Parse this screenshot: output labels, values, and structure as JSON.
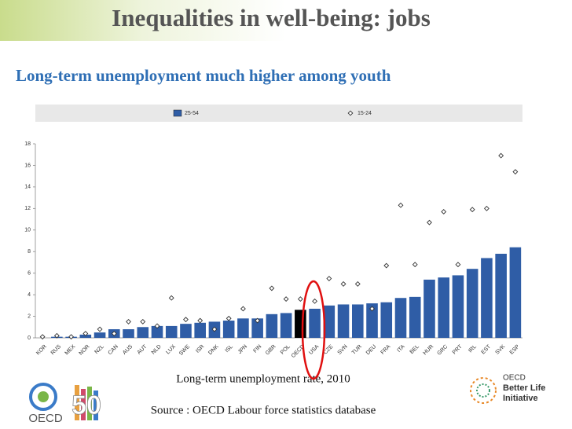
{
  "header": {
    "title": "Inequalities in well-being: jobs",
    "subtitle": "Long-term unemployment much higher among youth"
  },
  "chart_data": {
    "type": "bar",
    "categories": [
      "KOR",
      "RUS",
      "MEX",
      "NOR",
      "NZL",
      "CAN",
      "AUS",
      "AUT",
      "NLD",
      "LUX",
      "SWE",
      "ISR",
      "DNK",
      "ISL",
      "JPN",
      "FIN",
      "GBR",
      "POL",
      "OECD",
      "USA",
      "CZE",
      "SVN",
      "TUR",
      "DEU",
      "FRA",
      "ITA",
      "BEL",
      "HUR",
      "GRC",
      "PRT",
      "IRL",
      "EST",
      "SVK",
      "ESP"
    ],
    "series": [
      {
        "name": "25-54",
        "mark": "bar",
        "color": "#2f5da6",
        "values": [
          0.0,
          0.1,
          0.1,
          0.3,
          0.5,
          0.8,
          0.8,
          1.0,
          1.1,
          1.1,
          1.3,
          1.4,
          1.5,
          1.6,
          1.8,
          1.8,
          2.2,
          2.3,
          2.6,
          2.7,
          3.0,
          3.1,
          3.1,
          3.2,
          3.3,
          3.7,
          3.8,
          5.4,
          5.6,
          5.8,
          6.4,
          7.4,
          7.8,
          8.4
        ],
        "colors": [
          "#2f5da6",
          "#2f5da6",
          "#2f5da6",
          "#2f5da6",
          "#2f5da6",
          "#2f5da6",
          "#2f5da6",
          "#2f5da6",
          "#2f5da6",
          "#2f5da6",
          "#2f5da6",
          "#2f5da6",
          "#2f5da6",
          "#2f5da6",
          "#2f5da6",
          "#2f5da6",
          "#2f5da6",
          "#2f5da6",
          "#000000",
          "#2f5da6",
          "#2f5da6",
          "#2f5da6",
          "#2f5da6",
          "#2f5da6",
          "#2f5da6",
          "#2f5da6",
          "#2f5da6",
          "#2f5da6",
          "#2f5da6",
          "#2f5da6",
          "#2f5da6",
          "#2f5da6",
          "#2f5da6",
          "#2f5da6"
        ]
      },
      {
        "name": "15-24",
        "mark": "diamond",
        "color": "#333333",
        "values": [
          0.1,
          0.2,
          0.1,
          0.4,
          0.8,
          0.4,
          1.5,
          1.5,
          1.1,
          3.7,
          1.7,
          1.6,
          0.8,
          1.8,
          2.7,
          1.6,
          4.6,
          3.6,
          3.6,
          3.4,
          5.5,
          5.0,
          5.0,
          2.7,
          6.7,
          12.3,
          6.8,
          10.7,
          11.7,
          6.8,
          11.9,
          12.0,
          16.9,
          15.4
        ]
      }
    ],
    "ylim": [
      0,
      18
    ],
    "yticks": [
      0,
      2,
      4,
      6,
      8,
      10,
      12,
      14,
      16,
      18
    ],
    "grid": false,
    "legend": "top",
    "caption": "Long-term unemployment rate, 2010"
  },
  "footer": {
    "source": "Source : OECD Labour force statistics database",
    "logo_left": {
      "name": "OECD",
      "number": "50"
    },
    "logo_right": [
      "OECD",
      "Better Life",
      "Initiative"
    ]
  }
}
